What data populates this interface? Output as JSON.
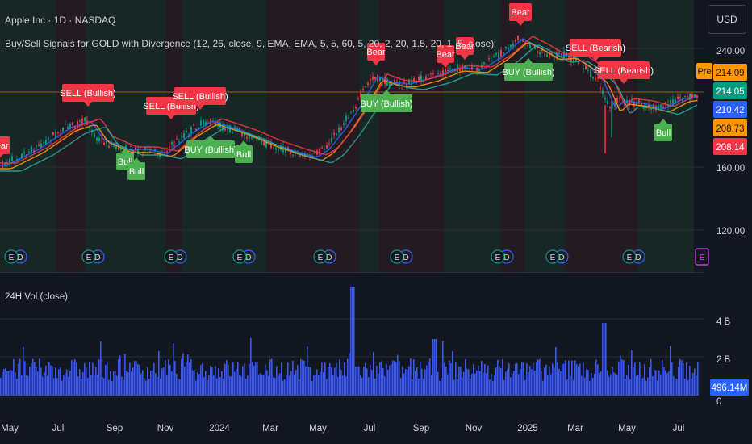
{
  "header": {
    "symbol_title": "Apple Inc · 1D · NASDAQ",
    "indicator_title": "Buy/Sell Signals for GOLD with Divergence (12, 26, close, 9, EMA, EMA, 5, 5, 60, 5, 20, 2, 20, 1.5, 20, 1, 5, close)"
  },
  "currency_button": "USD",
  "volume_pane": {
    "title": "24H Vol (close)"
  },
  "price_axis": {
    "ticks": [
      "240.00",
      "160.00",
      "120.00"
    ],
    "pre_tag": "Pre",
    "badges": [
      {
        "label": "214.09",
        "color": "#ff9800"
      },
      {
        "label": "214.05",
        "color": "#089981"
      },
      {
        "label": "210.42",
        "color": "#2962ff"
      },
      {
        "label": "208.73",
        "color": "#ff9800"
      },
      {
        "label": "208.14",
        "color": "#f23645"
      }
    ]
  },
  "volume_axis": {
    "ticks": [
      "4 B",
      "2 B",
      "0"
    ],
    "badge": "496.14M"
  },
  "time_axis": [
    "May",
    "Jul",
    "Sep",
    "Nov",
    "2024",
    "Mar",
    "May",
    "Jul",
    "Sep",
    "Nov",
    "2025",
    "Mar",
    "May",
    "Jul"
  ],
  "signals": [
    {
      "text": "Bear",
      "kind": "sell"
    },
    {
      "text": "SELL (Bullish)",
      "kind": "sell"
    },
    {
      "text": "Bull",
      "kind": "buy"
    },
    {
      "text": "Bull",
      "kind": "buy"
    },
    {
      "text": "SELL (Bullish)",
      "kind": "sell"
    },
    {
      "text": "SELL (Bullish)",
      "kind": "sell"
    },
    {
      "text": "BUY (Bullish)",
      "kind": "buy"
    },
    {
      "text": "Bull",
      "kind": "buy"
    },
    {
      "text": "Bear",
      "kind": "sell"
    },
    {
      "text": "BUY (Bullish)",
      "kind": "buy"
    },
    {
      "text": "Bear",
      "kind": "sell"
    },
    {
      "text": "Bear",
      "kind": "sell"
    },
    {
      "text": "Bear",
      "kind": "sell"
    },
    {
      "text": "BUY (Bullish)",
      "kind": "buy"
    },
    {
      "text": "SELL (Bearish)",
      "kind": "sell"
    },
    {
      "text": "SELL (Bearish)",
      "kind": "sell"
    },
    {
      "text": "Bull",
      "kind": "buy"
    }
  ],
  "earnings_marker": "E",
  "dividend_marker": "D",
  "colors": {
    "background": "#131722",
    "sell_label": "#f23645",
    "buy_label": "#4caf50",
    "volume_bar": "#3a5bd9",
    "candle_up": "#089981",
    "candle_down": "#f23645"
  },
  "ma_lines": [
    {
      "name": "fast",
      "color": "#2962ff"
    },
    {
      "name": "mid",
      "color": "#ff9800"
    },
    {
      "name": "slow",
      "color": "#f23645"
    },
    {
      "name": "signal",
      "color": "#26a69a"
    }
  ]
}
